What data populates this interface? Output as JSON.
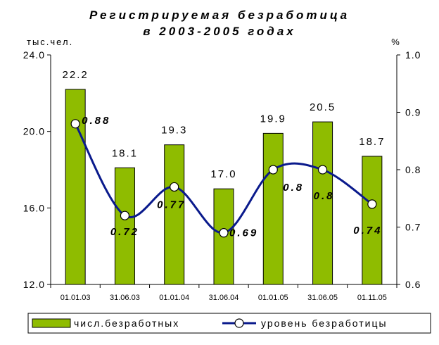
{
  "chart_data": {
    "type": "bar",
    "title": [
      "Регистрируемая безработица",
      "в 2003-2005 годах"
    ],
    "categories": [
      "01.01.03",
      "31.06.03",
      "01.01.04",
      "31.06.04",
      "01.01.05",
      "31.06.05",
      "01.11.05"
    ],
    "left_axis": {
      "unit": "тыс.чел.",
      "ylim": [
        12.0,
        24.0
      ],
      "ticks": [
        "12.0",
        "16.0",
        "20.0",
        "24.0"
      ]
    },
    "right_axis": {
      "unit": "%",
      "ylim": [
        0.6,
        1.0
      ],
      "ticks": [
        "0.6",
        "0.7",
        "0.8",
        "0.9",
        "1.0"
      ]
    },
    "series": [
      {
        "name": "числ.безработных",
        "type": "bar",
        "axis": "left",
        "color": "#8fbc00",
        "values": [
          22.2,
          18.1,
          19.3,
          17.0,
          19.9,
          20.5,
          18.7
        ],
        "labels": [
          "22.2",
          "18.1",
          "19.3",
          "17.0",
          "19.9",
          "20.5",
          "18.7"
        ]
      },
      {
        "name": "уровень безработицы",
        "type": "line",
        "axis": "right",
        "color": "#0a1a8c",
        "values": [
          0.88,
          0.72,
          0.77,
          0.69,
          0.8,
          0.8,
          0.74
        ],
        "labels": [
          "0.88",
          "0.72",
          "0.77",
          "0.69",
          "0.8",
          "0.8",
          "0.74"
        ]
      }
    ],
    "grid": false,
    "legend": "bottom"
  }
}
